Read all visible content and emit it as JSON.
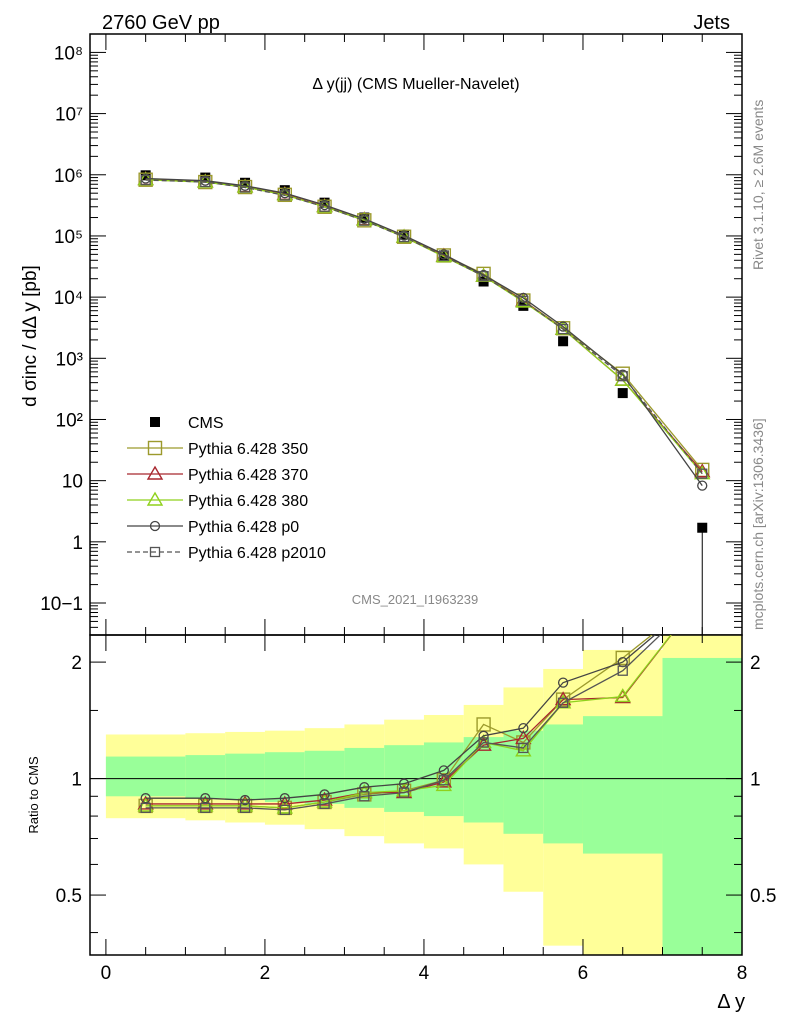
{
  "header": {
    "left": "2760 GeV pp",
    "right": "Jets"
  },
  "side_labels": {
    "top": "Rivet 3.1.10, ≥ 2.6M events",
    "bottom": "mcplots.cern.ch [arXiv:1306.3436]"
  },
  "colors": {
    "CMS": "#000000",
    "Pythia 6.428 350": "#9c9a2c",
    "Pythia 6.428 370": "#a8272f",
    "Pythia 6.428 380": "#8fd11c",
    "Pythia 6.428 p0": "#444444",
    "Pythia 6.428 p2010": "#555555",
    "band_inner": "#99ff99",
    "band_outer": "#ffff99"
  },
  "chart_data": [
    {
      "type": "scatter",
      "title": "Δ y(jj) (CMS Mueller-Navelet)",
      "watermark": "CMS_2021_I1963239",
      "ylabel": "d σinc / dΔ y [pb]",
      "xlabel": "Δ y",
      "xlim": [
        -0.2,
        8.0
      ],
      "ylim": [
        0.03,
        200000000
      ],
      "yscale": "log",
      "legend_position": "bottom-left",
      "x_ticks": [
        "0",
        "2",
        "4",
        "6",
        "8"
      ],
      "y_ticks": [
        "10−1",
        "1",
        "10",
        "10²",
        "10³",
        "10⁴",
        "10⁵",
        "10⁶",
        "10⁷",
        "10⁸"
      ],
      "x": [
        0.5,
        1.25,
        1.75,
        2.25,
        2.75,
        3.25,
        3.75,
        4.25,
        4.75,
        5.25,
        5.75,
        6.5,
        7.5
      ],
      "series": [
        {
          "name": "CMS",
          "marker": "filled-square",
          "values": [
            980000,
            900000,
            740000,
            560000,
            350000,
            200000,
            105000,
            48000,
            18000,
            7200,
            1900,
            270,
            1.7
          ],
          "err_low_last": 0.01
        },
        {
          "name": "Pythia 6.428 350",
          "marker": "open-square",
          "values": [
            830000,
            760000,
            630000,
            470000,
            300000,
            180000,
            97000,
            48000,
            24000,
            8800,
            3100,
            560,
            15
          ]
        },
        {
          "name": "Pythia 6.428 370",
          "marker": "open-triangle",
          "values": [
            840000,
            770000,
            640000,
            480000,
            305000,
            185000,
            96000,
            47000,
            22000,
            8700,
            3000,
            440,
            14
          ]
        },
        {
          "name": "Pythia 6.428 380",
          "marker": "open-triangle",
          "values": [
            830000,
            760000,
            630000,
            470000,
            300000,
            182000,
            96000,
            46000,
            22000,
            8400,
            3000,
            440,
            13
          ]
        },
        {
          "name": "Pythia 6.428 p0",
          "marker": "open-circle",
          "values": [
            870000,
            800000,
            660000,
            500000,
            320000,
            190000,
            102000,
            50000,
            23000,
            9700,
            3300,
            540,
            8.3
          ]
        },
        {
          "name": "Pythia 6.428 p2010",
          "marker": "open-square-small",
          "dashed": true,
          "values": [
            820000,
            760000,
            620000,
            460000,
            300000,
            178000,
            96000,
            47000,
            22000,
            8700,
            3000,
            510,
            13
          ]
        }
      ]
    },
    {
      "type": "line",
      "ylabel": "Ratio to CMS",
      "xlabel": "Δ y",
      "xlim": [
        -0.2,
        8.0
      ],
      "ylim": [
        0.35,
        2.35
      ],
      "yscale": "log",
      "y_ticks": [
        "0.5",
        "1",
        "2"
      ],
      "x": [
        0.5,
        1.25,
        1.75,
        2.25,
        2.75,
        3.25,
        3.75,
        4.25,
        4.75,
        5.25,
        5.75,
        6.5
      ],
      "bin_edges": [
        0,
        1.0,
        1.5,
        2.0,
        2.5,
        3.0,
        3.5,
        4.0,
        4.5,
        5.0,
        5.5,
        6.0,
        7.0,
        8.0
      ],
      "band_inner": {
        "low": [
          0.9,
          0.89,
          0.88,
          0.87,
          0.86,
          0.84,
          0.82,
          0.8,
          0.77,
          0.72,
          0.68,
          0.64,
          0.35
        ],
        "high": [
          1.14,
          1.15,
          1.16,
          1.17,
          1.18,
          1.2,
          1.22,
          1.24,
          1.28,
          1.33,
          1.38,
          1.45,
          2.05
        ]
      },
      "band_outer": {
        "low": [
          0.79,
          0.78,
          0.77,
          0.76,
          0.74,
          0.71,
          0.68,
          0.66,
          0.6,
          0.51,
          0.37,
          0.35,
          0.35
        ],
        "high": [
          1.3,
          1.31,
          1.32,
          1.33,
          1.35,
          1.38,
          1.42,
          1.46,
          1.55,
          1.72,
          1.92,
          2.15,
          2.35
        ]
      },
      "series": [
        {
          "name": "Pythia 6.428 350",
          "values": [
            0.85,
            0.85,
            0.85,
            0.84,
            0.87,
            0.91,
            0.93,
            0.99,
            1.38,
            1.24,
            1.6,
            2.05
          ]
        },
        {
          "name": "Pythia 6.428 370",
          "values": [
            0.86,
            0.86,
            0.86,
            0.86,
            0.88,
            0.92,
            0.92,
            0.98,
            1.22,
            1.27,
            1.6,
            1.62
          ]
        },
        {
          "name": "Pythia 6.428 380",
          "values": [
            0.85,
            0.85,
            0.85,
            0.84,
            0.87,
            0.92,
            0.93,
            0.96,
            1.24,
            1.18,
            1.57,
            1.63
          ]
        },
        {
          "name": "Pythia 6.428 p0",
          "values": [
            0.89,
            0.89,
            0.88,
            0.89,
            0.91,
            0.95,
            0.97,
            1.05,
            1.29,
            1.35,
            1.77,
            2.0
          ]
        },
        {
          "name": "Pythia 6.428 p2010",
          "values": [
            0.84,
            0.84,
            0.84,
            0.83,
            0.86,
            0.9,
            0.92,
            0.99,
            1.24,
            1.2,
            1.57,
            1.9
          ]
        }
      ]
    }
  ]
}
